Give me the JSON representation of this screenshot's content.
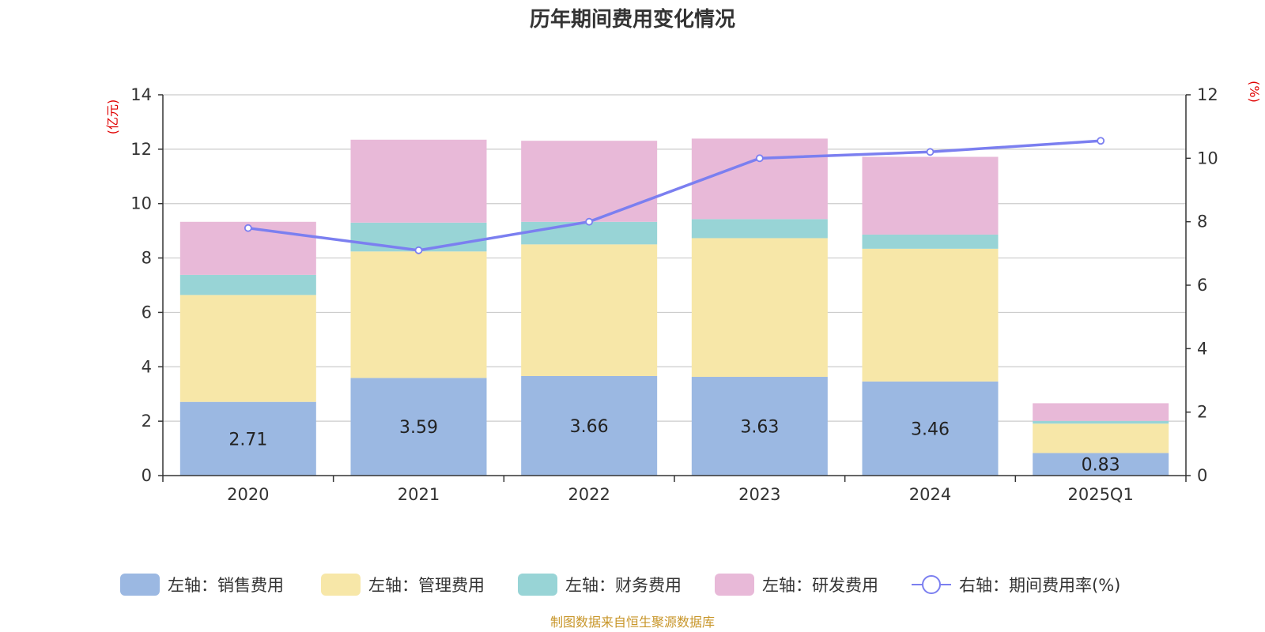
{
  "chart_data": {
    "type": "bar",
    "stacked": true,
    "title": "历年期间费用变化情况",
    "categories": [
      "2020",
      "2021",
      "2022",
      "2023",
      "2024",
      "2025Q1"
    ],
    "left_axis": {
      "unit": "(亿元)",
      "ylim": [
        0,
        14
      ],
      "ticks": [
        "0",
        "2",
        "4",
        "6",
        "8",
        "10",
        "12",
        "14"
      ]
    },
    "right_axis": {
      "unit": "(%)",
      "ylim": [
        0,
        12
      ],
      "ticks": [
        "0",
        "2",
        "4",
        "6",
        "8",
        "10",
        "12"
      ]
    },
    "series": [
      {
        "name": "左轴：销售费用",
        "color": "#9bb8e2",
        "values": [
          2.71,
          3.59,
          3.66,
          3.63,
          3.46,
          0.83
        ],
        "labels": [
          "2.71",
          "3.59",
          "3.66",
          "3.63",
          "3.46",
          "0.83"
        ]
      },
      {
        "name": "左轴：管理费用",
        "color": "#f7e7a8",
        "values": [
          3.93,
          4.65,
          4.84,
          5.1,
          4.88,
          1.08
        ]
      },
      {
        "name": "左轴：财务费用",
        "color": "#98d4d6",
        "values": [
          0.74,
          1.06,
          0.83,
          0.7,
          0.52,
          0.1
        ]
      },
      {
        "name": "左轴：研发费用",
        "color": "#e8b9d8",
        "values": [
          1.95,
          3.05,
          2.98,
          2.96,
          2.86,
          0.65
        ]
      }
    ],
    "line": {
      "name": "右轴：期间费用率(%)",
      "color": "#7b7ff0",
      "values": [
        7.8,
        7.1,
        8.0,
        10.0,
        10.2,
        10.55
      ]
    },
    "grid": true,
    "legend_position": "bottom"
  },
  "source_text": "制图数据来自恒生聚源数据库"
}
